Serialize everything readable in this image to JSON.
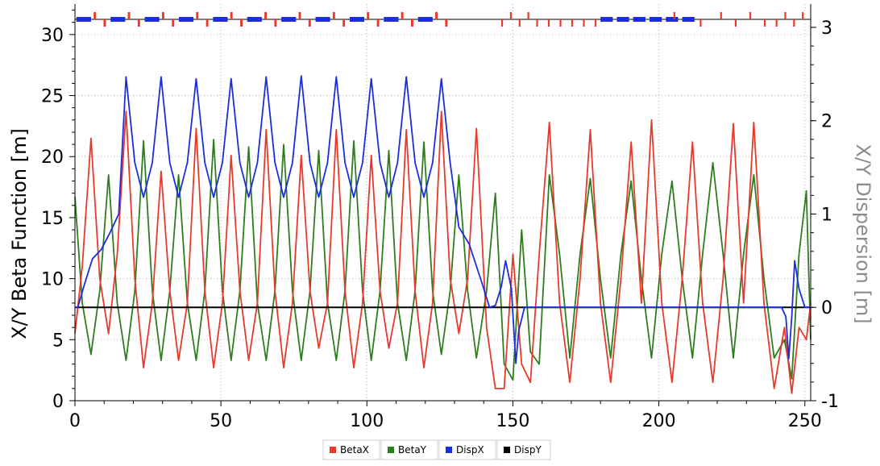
{
  "chart_data": {
    "type": "line",
    "xlim": [
      0,
      252
    ],
    "ylim": [
      0,
      32.5
    ],
    "y2lim": [
      -1,
      3.25
    ],
    "ylabel": "X/Y Beta Function [m]",
    "y2label": "X/Y Dispersion [m]",
    "xticks": [
      "0",
      "50",
      "100",
      "150",
      "200",
      "250"
    ],
    "yticks": [
      "0",
      "5",
      "10",
      "15",
      "20",
      "25",
      "30"
    ],
    "y2ticks": [
      "-1",
      "0",
      "1",
      "2",
      "3"
    ],
    "grid": true,
    "legend_position": "bottom-center",
    "colors": {
      "BetaX": "#e8392b",
      "BetaY": "#2e7d1e",
      "DispX": "#1a2ee0",
      "DispY": "#000000",
      "grid": "#b0b0b0",
      "y2axis": "#8c8c8c"
    },
    "series": [
      {
        "name": "BetaX",
        "axis": "left",
        "x": [
          0,
          2.5,
          5.5,
          8.5,
          11.5,
          14.5,
          17.5,
          20.5,
          23.5,
          26.5,
          29.5,
          32.5,
          35.5,
          38.5,
          41.5,
          44.5,
          47.5,
          50.5,
          53.5,
          56.5,
          59.5,
          62.5,
          65.5,
          68.5,
          71.5,
          74.5,
          77.5,
          80.5,
          83.5,
          86.5,
          89.5,
          92.5,
          95.5,
          98.5,
          101.5,
          104.5,
          107.5,
          110.5,
          113.5,
          116.5,
          119.5,
          122.5,
          125.5,
          128.5,
          131.5,
          134.5,
          137.5,
          141,
          144,
          147,
          150,
          153,
          156,
          159,
          162.5,
          166,
          169.5,
          173,
          176.5,
          180,
          183.5,
          187,
          190.5,
          194,
          197.5,
          201,
          204.5,
          208,
          211.5,
          215,
          218.5,
          222,
          225.5,
          229,
          232.5,
          236,
          239.5,
          243,
          245.5,
          248,
          250.5,
          252
        ],
        "values": [
          5.5,
          11,
          21.5,
          10,
          5.5,
          12,
          23.7,
          10,
          2.7,
          8,
          18.8,
          9,
          3.3,
          8,
          22.3,
          9,
          2.7,
          8,
          20.1,
          9,
          3.3,
          8,
          22.2,
          9,
          2.7,
          8,
          20.1,
          9,
          4.3,
          8,
          22.2,
          9,
          2.7,
          8,
          20.1,
          9,
          4.3,
          8,
          22.2,
          9,
          2.7,
          8,
          23.7,
          10,
          5.5,
          10,
          22.3,
          6,
          1.0,
          1.0,
          12,
          3,
          1.5,
          12,
          22.8,
          8,
          1.5,
          10,
          22.2,
          8,
          1.5,
          10,
          21.2,
          8,
          23,
          8,
          1.5,
          10,
          21.2,
          8,
          1.5,
          10,
          22.7,
          8,
          22.8,
          8,
          1.0,
          6,
          0.6,
          6,
          5.0,
          8
        ]
      },
      {
        "name": "BetaY",
        "axis": "left",
        "x": [
          0,
          2.5,
          5.5,
          8.5,
          11.5,
          14.5,
          17.5,
          20.5,
          23.5,
          26.5,
          29.5,
          32.5,
          35.5,
          38.5,
          41.5,
          44.5,
          47.5,
          50.5,
          53.5,
          56.5,
          59.5,
          62.5,
          65.5,
          68.5,
          71.5,
          74.5,
          77.5,
          80.5,
          83.5,
          86.5,
          89.5,
          92.5,
          95.5,
          98.5,
          101.5,
          104.5,
          107.5,
          110.5,
          113.5,
          116.5,
          119.5,
          122.5,
          125.5,
          128.5,
          131.5,
          134.5,
          137.5,
          141,
          144,
          147,
          150,
          153,
          156,
          159,
          162.5,
          166,
          169.5,
          173,
          176.5,
          180,
          183.5,
          187,
          190.5,
          194,
          197.5,
          201,
          204.5,
          208,
          211.5,
          215,
          218.5,
          222,
          225.5,
          229,
          232.5,
          236,
          239.5,
          243,
          245.5,
          248,
          250.5,
          252
        ],
        "values": [
          16.7,
          8,
          3.8,
          9,
          18.5,
          8,
          3.3,
          9,
          21.3,
          9,
          3.3,
          9,
          18.5,
          8,
          3.3,
          9,
          21.4,
          9,
          3.3,
          9,
          20.8,
          8,
          3.3,
          9,
          21.0,
          9,
          3.3,
          9,
          20.5,
          8,
          3.3,
          9,
          21.3,
          9,
          3.3,
          9,
          20.5,
          8,
          3.3,
          9,
          21.2,
          9,
          3.8,
          9,
          18.5,
          9,
          3.5,
          9,
          17.0,
          3,
          1.7,
          14,
          4,
          3,
          18.5,
          12,
          3.5,
          12,
          18.2,
          10,
          3.5,
          12,
          18.0,
          10,
          3.5,
          12,
          18.0,
          10,
          3.5,
          12,
          19.5,
          12,
          3.5,
          12,
          18.5,
          10,
          3.5,
          5,
          1.8,
          12,
          17.2,
          5
        ]
      },
      {
        "name": "DispX",
        "axis": "right",
        "x": [
          0,
          1,
          3,
          6,
          9,
          12,
          15,
          17.5,
          20.5,
          23.5,
          26.5,
          29.5,
          32.5,
          35.5,
          38.5,
          41.5,
          44.5,
          47.5,
          50.5,
          53.5,
          56.5,
          59.5,
          62.5,
          65.5,
          68.5,
          71.5,
          74.5,
          77.5,
          80.5,
          83.5,
          86.5,
          89.5,
          92.5,
          95.5,
          98.5,
          101.5,
          104.5,
          107.5,
          110.5,
          113.5,
          116.5,
          119.5,
          122.5,
          125.5,
          128.5,
          131.5,
          135,
          139,
          142,
          144,
          146,
          147.5,
          149.5,
          151,
          152,
          154,
          160,
          170,
          180,
          200,
          215,
          240,
          242,
          243.5,
          244.5,
          245.5,
          246.5,
          248,
          250,
          252
        ],
        "values": [
          0,
          0,
          0.22,
          0.52,
          0.62,
          0.8,
          1.0,
          2.47,
          1.55,
          1.18,
          1.55,
          2.47,
          1.55,
          1.18,
          1.55,
          2.45,
          1.55,
          1.18,
          1.55,
          2.45,
          1.55,
          1.18,
          1.55,
          2.47,
          1.55,
          1.18,
          1.55,
          2.48,
          1.55,
          1.18,
          1.55,
          2.47,
          1.55,
          1.18,
          1.55,
          2.45,
          1.55,
          1.18,
          1.55,
          2.47,
          1.55,
          1.18,
          1.55,
          2.45,
          1.55,
          0.86,
          0.68,
          0.3,
          0,
          0.02,
          0.22,
          0.5,
          0.2,
          -0.6,
          -0.25,
          0,
          0,
          0,
          0,
          0,
          0,
          0,
          0,
          -0.1,
          -0.55,
          -0.1,
          0.5,
          0.2,
          0,
          0
        ]
      },
      {
        "name": "DispY",
        "axis": "right",
        "x": [
          0,
          252
        ],
        "values": [
          0,
          0
        ]
      }
    ]
  },
  "legend": {
    "items": [
      {
        "label": "BetaX",
        "color": "#e8392b"
      },
      {
        "label": "BetaY",
        "color": "#2e7d1e"
      },
      {
        "label": "DispX",
        "color": "#1a2ee0"
      },
      {
        "label": "DispY",
        "color": "#000000"
      }
    ]
  }
}
